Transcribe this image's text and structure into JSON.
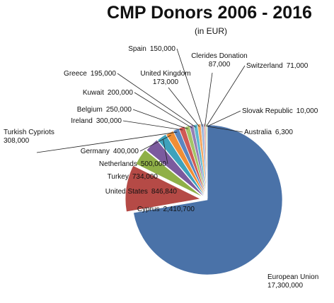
{
  "chart_data": {
    "type": "pie",
    "title": "CMP Donors 2006 - 2016",
    "subtitle": "(in EUR)",
    "slices": [
      {
        "label": "European Union",
        "value_label": "17,300,000",
        "value": 17300000,
        "color": "#4a72a8"
      },
      {
        "label": "Cyprus",
        "value_label": "2,410,700",
        "value": 2410700,
        "color": "#b54a46"
      },
      {
        "label": "United States",
        "value_label": "846,840",
        "value": 846840,
        "color": "#8fb047"
      },
      {
        "label": "Turkey",
        "value_label": "734,000",
        "value": 734000,
        "color": "#7b5a9e"
      },
      {
        "label": "Netherlands",
        "value_label": "500,000",
        "value": 500000,
        "color": "#3ea2bc"
      },
      {
        "label": "Germany",
        "value_label": "400,000",
        "value": 400000,
        "color": "#ef8e36"
      },
      {
        "label": "Turkish Cypriots",
        "value_label": "308,000",
        "value": 308000,
        "color": "#5a86c0"
      },
      {
        "label": "Ireland",
        "value_label": "300,000",
        "value": 300000,
        "color": "#d05a55"
      },
      {
        "label": "Belgium",
        "value_label": "250,000",
        "value": 250000,
        "color": "#a3c468"
      },
      {
        "label": "Kuwait",
        "value_label": "200,000",
        "value": 200000,
        "color": "#9680b6"
      },
      {
        "label": "Greece",
        "value_label": "195,000",
        "value": 195000,
        "color": "#5db8cf"
      },
      {
        "label": "United Kingdom",
        "value_label": "173,000",
        "value": 173000,
        "color": "#f4a862"
      },
      {
        "label": "Spain",
        "value_label": "150,000",
        "value": 150000,
        "color": "#9fb7da"
      },
      {
        "label": "Clerides Donation",
        "value_label": "87,000",
        "value": 87000,
        "color": "#df9a96"
      },
      {
        "label": "Switzerland",
        "value_label": "71,000",
        "value": 71000,
        "color": "#c7dca5"
      },
      {
        "label": "Slovak Republic",
        "value_label": "10,000",
        "value": 10000,
        "color": "#bcaed2"
      },
      {
        "label": "Australia",
        "value_label": "6,300",
        "value": 6300,
        "color": "#a2d3e0"
      }
    ]
  }
}
